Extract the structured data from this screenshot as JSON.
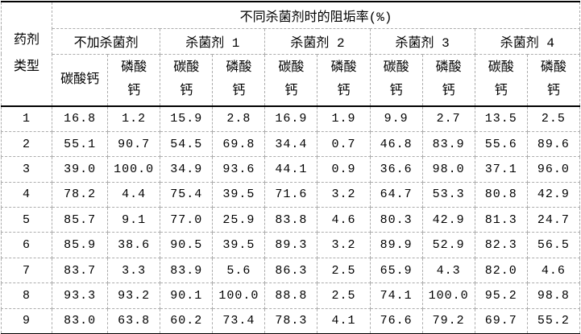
{
  "table": {
    "corner": "药剂\n类型",
    "span_header": "不同杀菌剂时的阻垢率(%)",
    "groups": [
      {
        "label": "不加杀菌剂",
        "sub1": "碳酸钙",
        "sub2": "磷酸\n钙"
      },
      {
        "label": "杀菌剂 1",
        "sub1": "碳酸\n钙",
        "sub2": "磷酸\n钙"
      },
      {
        "label": "杀菌剂 2",
        "sub1": "碳酸\n钙",
        "sub2": "磷酸\n钙"
      },
      {
        "label": "杀菌剂 3",
        "sub1": "碳酸\n钙",
        "sub2": "磷酸\n钙"
      },
      {
        "label": "杀菌剂 4",
        "sub1": "碳酸\n钙",
        "sub2": "磷酸\n钙"
      }
    ],
    "rows": [
      {
        "type": "1",
        "values": [
          "16.8",
          "1.2",
          "15.9",
          "2.8",
          "16.9",
          "1.9",
          "9.9",
          "2.7",
          "13.5",
          "2.5"
        ]
      },
      {
        "type": "2",
        "values": [
          "55.1",
          "90.7",
          "54.5",
          "69.8",
          "34.4",
          "0.7",
          "46.8",
          "83.9",
          "55.6",
          "89.6"
        ]
      },
      {
        "type": "3",
        "values": [
          "39.0",
          "100.0",
          "34.9",
          "93.6",
          "44.1",
          "0.9",
          "36.6",
          "98.0",
          "37.1",
          "96.0"
        ]
      },
      {
        "type": "4",
        "values": [
          "78.2",
          "4.4",
          "75.4",
          "39.5",
          "71.6",
          "3.2",
          "64.7",
          "53.3",
          "80.8",
          "42.9"
        ]
      },
      {
        "type": "5",
        "values": [
          "85.7",
          "9.1",
          "77.0",
          "25.9",
          "83.8",
          "4.6",
          "80.3",
          "42.9",
          "81.3",
          "24.7"
        ]
      },
      {
        "type": "6",
        "values": [
          "85.9",
          "38.6",
          "90.5",
          "39.5",
          "89.3",
          "3.2",
          "89.9",
          "52.9",
          "82.3",
          "56.5"
        ]
      },
      {
        "type": "7",
        "values": [
          "83.7",
          "3.3",
          "83.9",
          "5.6",
          "86.3",
          "2.5",
          "65.9",
          "4.3",
          "82.0",
          "4.6"
        ]
      },
      {
        "type": "8",
        "values": [
          "93.3",
          "93.2",
          "90.1",
          "100.0",
          "88.8",
          "2.5",
          "74.1",
          "100.0",
          "95.2",
          "98.8"
        ]
      },
      {
        "type": "9",
        "values": [
          "83.0",
          "63.8",
          "60.2",
          "73.4",
          "78.3",
          "4.1",
          "76.6",
          "79.2",
          "69.7",
          "55.2"
        ]
      }
    ],
    "colors": {
      "background": "#ffffff",
      "text": "#000000",
      "solid_border": "#000000",
      "dashed_border": "#adadad"
    }
  }
}
